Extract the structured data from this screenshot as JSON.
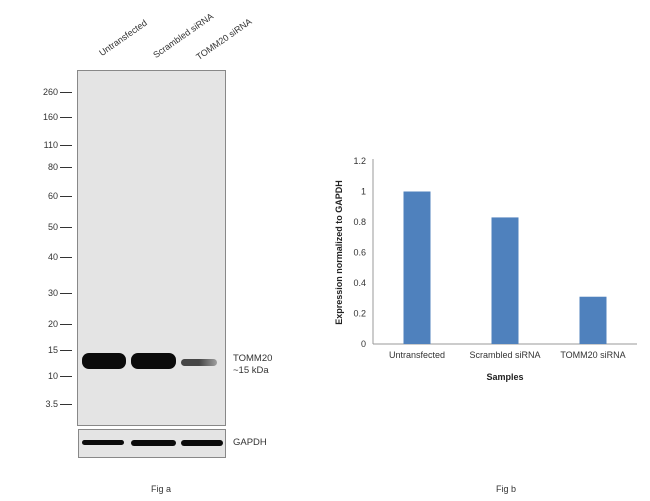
{
  "fig_a": {
    "caption": "Fig a",
    "lanes": [
      "Untransfected",
      "Scrambled siRNA",
      "TOMM20 siRNA"
    ],
    "markers": [
      "260",
      "160",
      "110",
      "80",
      "60",
      "50",
      "40",
      "30",
      "20",
      "15",
      "10",
      "3.5"
    ],
    "target_label": "TOMM20",
    "target_size": "~15 kDa",
    "control_label": "GAPDH"
  },
  "fig_b": {
    "caption": "Fig b"
  },
  "chart_data": {
    "type": "bar",
    "categories": [
      "Untransfected",
      "Scrambled siRNA",
      "TOMM20 siRNA"
    ],
    "values": [
      1.0,
      0.83,
      0.31
    ],
    "xlabel": "Samples",
    "ylabel": "Expression normalized to GAPDH",
    "ylim": [
      0,
      1.2
    ],
    "yticks": [
      "0",
      "0.2",
      "0.4",
      "0.6",
      "0.8",
      "1",
      "1.2"
    ],
    "grid": false,
    "bar_color": "#4f81bd"
  }
}
